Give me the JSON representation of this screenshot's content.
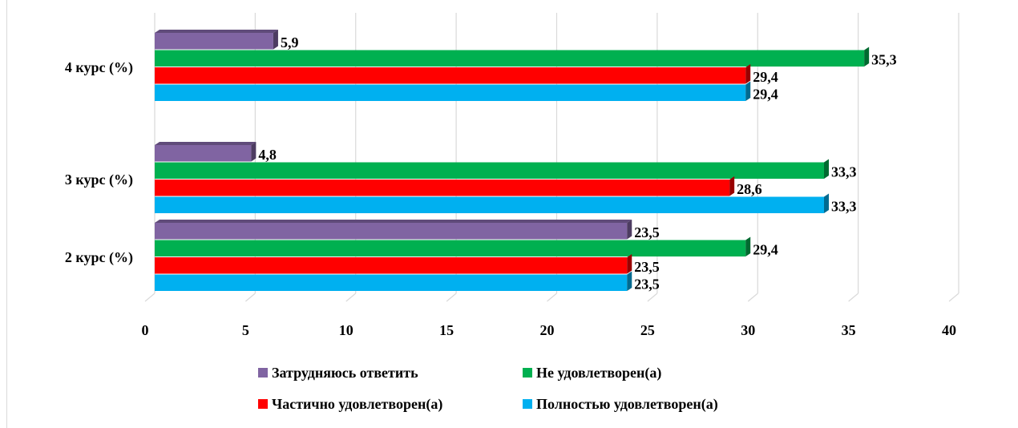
{
  "chart_data": {
    "type": "bar",
    "orientation": "horizontal",
    "categories": [
      "4 курс (%)",
      "3 курс (%)",
      "2 курс (%)"
    ],
    "series": [
      {
        "name": "Затрудняюсь ответить",
        "color": "#8064a2",
        "values": [
          5.9,
          4.8,
          23.5
        ],
        "labels": [
          "5,9",
          "4,8",
          "23,5"
        ]
      },
      {
        "name": "Не удовлетворен(а)",
        "color": "#00b050",
        "values": [
          35.3,
          33.3,
          29.4
        ],
        "labels": [
          "35,3",
          "33,3",
          "29,4"
        ]
      },
      {
        "name": "Частично удовлетворен(а)",
        "color": "#ff0000",
        "values": [
          29.4,
          28.6,
          23.5
        ],
        "labels": [
          "29,4",
          "28,6",
          "23,5"
        ]
      },
      {
        "name": "Полностью удовлетворен(а)",
        "color": "#00b0f0",
        "values": [
          29.4,
          33.3,
          23.5
        ],
        "labels": [
          "29,4",
          "33,3",
          "23,5"
        ]
      }
    ],
    "xlim": [
      0,
      40
    ],
    "xticks": [
      "0",
      "5",
      "10",
      "15",
      "20",
      "25",
      "30",
      "35",
      "40"
    ],
    "grid": true,
    "legend_position": "bottom",
    "style": "3d"
  },
  "legend": {
    "row1": [
      "Затрудняюсь ответить",
      "Не удовлетворен(а)"
    ],
    "row2": [
      "Частично удовлетворен(а)",
      "Полностью удовлетворен(а)"
    ]
  }
}
